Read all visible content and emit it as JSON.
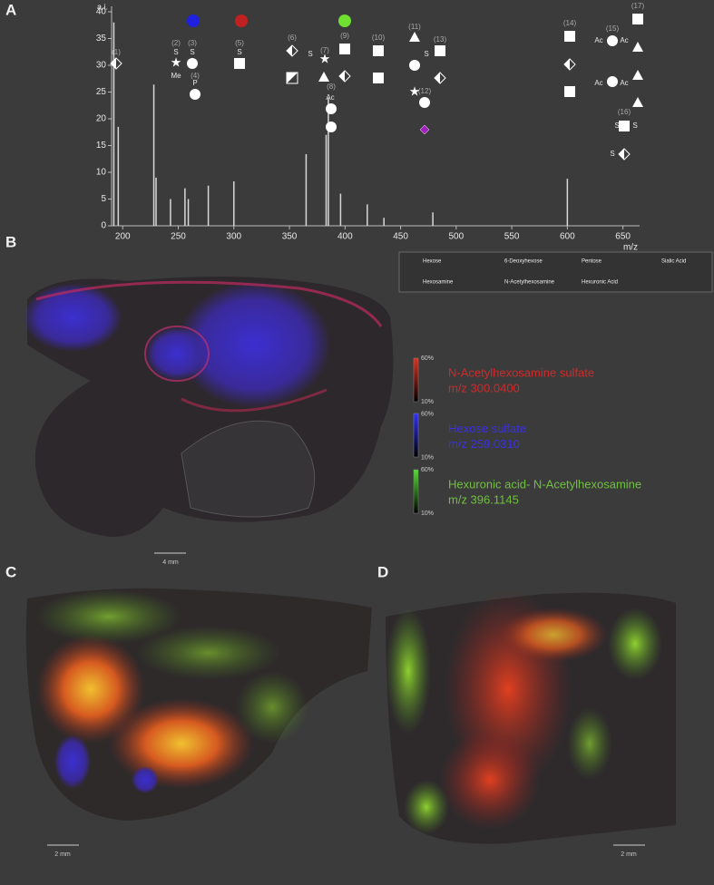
{
  "panels": [
    "A",
    "B",
    "C",
    "D"
  ],
  "chart_data": {
    "type": "stem",
    "ylabel": "a.i.",
    "xlabel": "m/z",
    "color": "#d8d8d8",
    "x": [
      192,
      196,
      228,
      230,
      243,
      256,
      259,
      277,
      300,
      365,
      383,
      385,
      396,
      420,
      435,
      479,
      600
    ],
    "values": [
      38,
      18.5,
      26.4,
      9,
      5,
      7,
      5,
      7.5,
      8.3,
      13.4,
      17,
      23.9,
      6,
      4,
      1.5,
      2.5,
      8.8
    ],
    "xlim": [
      190,
      665
    ],
    "xticks": [
      200,
      250,
      300,
      350,
      400,
      450,
      500,
      550,
      600,
      650
    ],
    "ylim": [
      0,
      40
    ],
    "yticks": [
      0,
      5,
      10,
      15,
      20,
      25,
      30,
      35,
      40
    ]
  },
  "structure_numbers": [
    "(1)",
    "(2)",
    "(3)",
    "(4)",
    "(5)",
    "(6)",
    "(7)",
    "(8)",
    "(9)",
    "(10)",
    "(11)",
    "(12)",
    "(13)",
    "(14)",
    "(15)",
    "(16)",
    "(17)"
  ],
  "glyph_labels": [
    "S",
    "Me",
    "S",
    "P",
    "S",
    "S",
    "Ac",
    "S",
    "Ac",
    "Ac",
    "Ac",
    "Ac",
    "S",
    "S",
    "S"
  ],
  "legend": [
    "Hexose",
    "6-Deoxyhexose",
    "Pentose",
    "Sialic Acid",
    "Hexosamine",
    "N-Acetylhexosamine",
    "Hexuronic Acid"
  ],
  "color_bars": [
    {
      "name": "N-Acetylhexosamine sulfate",
      "mz": "m/z 300.0400",
      "max": "60%",
      "min": "10%",
      "color": "#d02a2a"
    },
    {
      "name": "Hexose sulfate",
      "mz": "m/z 259.0310",
      "max": "60%",
      "min": "10%",
      "color": "#3a30e0"
    },
    {
      "name": "Hexuronic acid- N-Acetylhexosamine",
      "mz": "m/z 396.1145",
      "max": "60%",
      "min": "10%",
      "color": "#70c040"
    }
  ],
  "scale_bars": [
    "4 mm",
    "2 mm",
    "2 mm"
  ]
}
